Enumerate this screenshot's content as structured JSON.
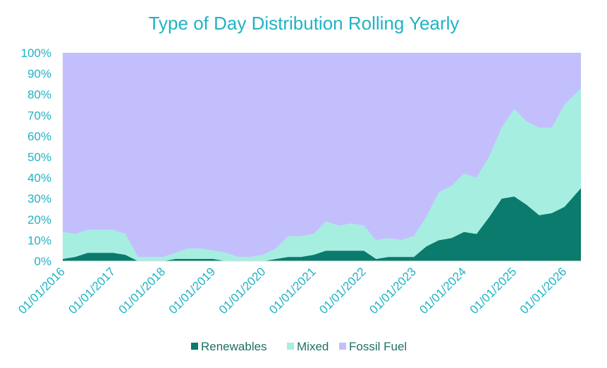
{
  "chart_data": {
    "type": "area",
    "stacked": true,
    "normalized": true,
    "title": "Type of Day Distribution Rolling Yearly",
    "xlabel": "",
    "ylabel": "",
    "ylim": [
      0,
      1
    ],
    "grid": false,
    "legend_position": "bottom",
    "x_range": [
      "01/01/2016",
      "01/05/2026"
    ],
    "y_tick_labels": [
      "0%",
      "10%",
      "20%",
      "30%",
      "40%",
      "50%",
      "60%",
      "70%",
      "80%",
      "90%",
      "100%"
    ],
    "x_tick_labels": [
      "01/01/2016",
      "01/01/2017",
      "01/01/2018",
      "01/01/2019",
      "01/01/2020",
      "01/01/2021",
      "01/01/2022",
      "01/01/2023",
      "01/01/2024",
      "01/01/2025",
      "01/01/2026"
    ],
    "x": [
      "01/01/2016",
      "01/04/2016",
      "01/07/2016",
      "01/10/2016",
      "01/01/2017",
      "01/04/2017",
      "01/07/2017",
      "01/10/2017",
      "01/01/2018",
      "01/04/2018",
      "01/07/2018",
      "01/10/2018",
      "01/01/2019",
      "01/04/2019",
      "01/07/2019",
      "01/10/2019",
      "01/01/2020",
      "01/04/2020",
      "01/07/2020",
      "01/10/2020",
      "01/01/2021",
      "01/04/2021",
      "01/07/2021",
      "01/10/2021",
      "01/01/2022",
      "01/04/2022",
      "01/07/2022",
      "01/10/2022",
      "01/01/2023",
      "01/04/2023",
      "01/07/2023",
      "01/10/2023",
      "01/01/2024",
      "01/04/2024",
      "01/07/2024",
      "01/10/2024",
      "01/01/2025",
      "01/04/2025",
      "01/07/2025",
      "01/10/2025",
      "01/01/2026",
      "01/05/2026"
    ],
    "series": [
      {
        "name": "Renewables",
        "color": "#0A7B6C",
        "values": [
          0.01,
          0.02,
          0.04,
          0.04,
          0.04,
          0.03,
          0.0,
          0.0,
          0.0,
          0.01,
          0.01,
          0.01,
          0.01,
          0.0,
          0.0,
          0.0,
          0.0,
          0.01,
          0.02,
          0.02,
          0.03,
          0.05,
          0.05,
          0.05,
          0.05,
          0.01,
          0.02,
          0.02,
          0.02,
          0.07,
          0.1,
          0.11,
          0.14,
          0.13,
          0.21,
          0.3,
          0.31,
          0.27,
          0.22,
          0.23,
          0.26,
          0.35
        ]
      },
      {
        "name": "Mixed",
        "color": "#A6EEE0",
        "values": [
          0.13,
          0.11,
          0.11,
          0.11,
          0.11,
          0.1,
          0.02,
          0.02,
          0.02,
          0.03,
          0.05,
          0.05,
          0.04,
          0.04,
          0.02,
          0.02,
          0.03,
          0.05,
          0.1,
          0.1,
          0.1,
          0.14,
          0.12,
          0.13,
          0.12,
          0.09,
          0.09,
          0.08,
          0.1,
          0.14,
          0.23,
          0.25,
          0.28,
          0.27,
          0.29,
          0.34,
          0.42,
          0.4,
          0.42,
          0.41,
          0.49,
          0.48
        ]
      },
      {
        "name": "Fossil Fuel",
        "color": "#C3BFFC",
        "values": [
          0.86,
          0.87,
          0.85,
          0.85,
          0.85,
          0.87,
          0.98,
          0.98,
          0.98,
          0.96,
          0.94,
          0.94,
          0.95,
          0.96,
          0.98,
          0.98,
          0.97,
          0.94,
          0.88,
          0.88,
          0.87,
          0.81,
          0.83,
          0.82,
          0.83,
          0.9,
          0.89,
          0.9,
          0.88,
          0.79,
          0.67,
          0.64,
          0.58,
          0.6,
          0.5,
          0.36,
          0.27,
          0.33,
          0.36,
          0.36,
          0.25,
          0.17
        ]
      }
    ],
    "colors": {
      "title": "#1FB3C4",
      "ticks": "#1FB3C4",
      "legend_text": "#1F6F66",
      "axis_line": "#D9D9D9"
    }
  }
}
